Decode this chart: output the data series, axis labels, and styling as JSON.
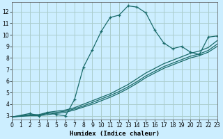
{
  "title": "",
  "xlabel": "Humidex (Indice chaleur)",
  "ylabel": "",
  "bg_color": "#cceeff",
  "line_color": "#1a6b6b",
  "grid_color": "#aacccc",
  "series1_x": [
    0,
    2,
    3,
    4,
    5,
    6,
    7,
    8,
    9,
    10,
    11,
    12,
    13,
    14,
    15,
    16,
    17,
    18,
    19,
    20,
    21,
    22,
    23
  ],
  "series1_y": [
    2.9,
    3.2,
    3.0,
    3.3,
    3.1,
    3.0,
    4.4,
    7.2,
    8.7,
    10.3,
    11.5,
    11.7,
    12.5,
    12.4,
    11.9,
    10.4,
    9.3,
    8.8,
    9.0,
    8.5,
    8.3,
    9.8,
    9.9
  ],
  "series2_x": [
    0,
    2,
    3,
    4,
    5,
    6,
    7,
    8,
    9,
    10,
    11,
    12,
    13,
    14,
    15,
    16,
    17,
    18,
    19,
    20,
    21,
    22,
    23
  ],
  "series2_y": [
    2.9,
    3.1,
    3.1,
    3.3,
    3.4,
    3.5,
    3.7,
    4.0,
    4.3,
    4.6,
    4.9,
    5.3,
    5.7,
    6.2,
    6.7,
    7.1,
    7.5,
    7.8,
    8.1,
    8.4,
    8.6,
    8.9,
    9.5
  ],
  "series3_x": [
    0,
    2,
    3,
    4,
    5,
    6,
    7,
    8,
    9,
    10,
    11,
    12,
    13,
    14,
    15,
    16,
    17,
    18,
    19,
    20,
    21,
    22,
    23
  ],
  "series3_y": [
    2.9,
    3.05,
    3.05,
    3.2,
    3.3,
    3.4,
    3.6,
    3.85,
    4.15,
    4.45,
    4.75,
    5.1,
    5.5,
    5.95,
    6.45,
    6.85,
    7.25,
    7.55,
    7.85,
    8.15,
    8.35,
    8.65,
    9.2
  ],
  "series4_x": [
    0,
    2,
    3,
    4,
    5,
    6,
    7,
    8,
    9,
    10,
    11,
    12,
    13,
    14,
    15,
    16,
    17,
    18,
    19,
    20,
    21,
    22,
    23
  ],
  "series4_y": [
    2.9,
    3.0,
    3.0,
    3.1,
    3.2,
    3.3,
    3.5,
    3.75,
    4.0,
    4.3,
    4.6,
    4.95,
    5.35,
    5.8,
    6.3,
    6.7,
    7.1,
    7.4,
    7.7,
    8.0,
    8.2,
    8.5,
    9.0
  ],
  "xlim": [
    0,
    23
  ],
  "ylim": [
    2.7,
    12.8
  ],
  "yticks": [
    3,
    4,
    5,
    6,
    7,
    8,
    9,
    10,
    11,
    12
  ],
  "xticks": [
    0,
    1,
    2,
    3,
    4,
    5,
    6,
    7,
    8,
    9,
    10,
    11,
    12,
    13,
    14,
    15,
    16,
    17,
    18,
    19,
    20,
    21,
    22,
    23
  ]
}
